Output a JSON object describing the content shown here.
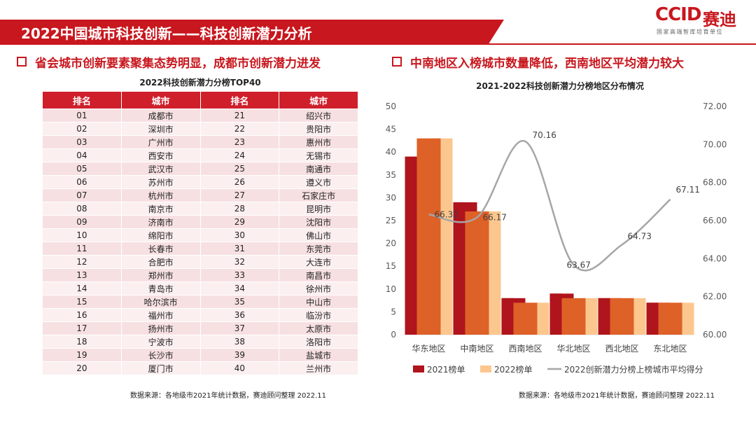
{
  "header": {
    "title": "2022中国城市科技创新——科技创新潜力分析",
    "logo_ccid": "CCID",
    "logo_saidi": "赛迪",
    "logo_tagline": "国家高端智库培育单位"
  },
  "left": {
    "section_title": "省会城市创新要素聚集态势明显，成都市创新潜力进发",
    "table_title": "2022科技创新潜力分榜TOP40",
    "columns": [
      "排名",
      "城市",
      "排名",
      "城市"
    ],
    "rows": [
      [
        "01",
        "成都市",
        "21",
        "绍兴市"
      ],
      [
        "02",
        "深圳市",
        "22",
        "贵阳市"
      ],
      [
        "03",
        "广州市",
        "23",
        "惠州市"
      ],
      [
        "04",
        "西安市",
        "24",
        "无锡市"
      ],
      [
        "05",
        "武汉市",
        "25",
        "南通市"
      ],
      [
        "06",
        "苏州市",
        "26",
        "遵义市"
      ],
      [
        "07",
        "杭州市",
        "27",
        "石家庄市"
      ],
      [
        "08",
        "南京市",
        "28",
        "昆明市"
      ],
      [
        "09",
        "济南市",
        "29",
        "沈阳市"
      ],
      [
        "10",
        "绵阳市",
        "30",
        "佛山市"
      ],
      [
        "11",
        "长春市",
        "31",
        "东莞市"
      ],
      [
        "12",
        "合肥市",
        "32",
        "大连市"
      ],
      [
        "13",
        "郑州市",
        "33",
        "南昌市"
      ],
      [
        "14",
        "青岛市",
        "34",
        "徐州市"
      ],
      [
        "15",
        "哈尔滨市",
        "35",
        "中山市"
      ],
      [
        "16",
        "福州市",
        "36",
        "临汾市"
      ],
      [
        "17",
        "扬州市",
        "37",
        "太原市"
      ],
      [
        "18",
        "宁波市",
        "38",
        "洛阳市"
      ],
      [
        "19",
        "长沙市",
        "39",
        "盐城市"
      ],
      [
        "20",
        "厦门市",
        "40",
        "兰州市"
      ]
    ],
    "source": "数据来源：各地级市2021年统计数据，赛迪顾问整理 2022.11"
  },
  "right": {
    "section_title": "中南地区入榜城市数量降低，西南地区平均潜力较大",
    "source": "数据来源：各地级市2021年统计数据，赛迪顾问整理 2022.11"
  },
  "colors": {
    "accent": "#c8171e",
    "bar_2021": "#b0141c",
    "bar_2022_front": "#de6128",
    "bar_2022_back": "#fcc78e",
    "line": "#a6a6a6"
  },
  "chart_data": {
    "type": "bar",
    "title": "2021-2022科技创新潜力分榜地区分布情况",
    "categories": [
      "华东地区",
      "中南地区",
      "西南地区",
      "华北地区",
      "西北地区",
      "东北地区"
    ],
    "series": [
      {
        "name": "2021榜单",
        "type": "bar",
        "values": [
          39,
          29,
          8,
          9,
          8,
          7
        ]
      },
      {
        "name": "2022榜单",
        "type": "bar",
        "values": [
          43,
          27,
          7,
          8,
          8,
          7
        ]
      },
      {
        "name": "2022创新潜力分榜上榜城市平均得分",
        "type": "line",
        "axis": "right",
        "values": [
          66.32,
          66.17,
          70.16,
          63.67,
          64.73,
          67.11
        ]
      }
    ],
    "ylim": [
      0,
      50
    ],
    "y_ticks": [
      0,
      5,
      10,
      15,
      20,
      25,
      30,
      35,
      40,
      45,
      50
    ],
    "y2lim": [
      60,
      72
    ],
    "y2_ticks": [
      "60.00",
      "62.00",
      "64.00",
      "66.00",
      "68.00",
      "70.00",
      "72.00"
    ],
    "grid": false,
    "legend": "bottom"
  }
}
